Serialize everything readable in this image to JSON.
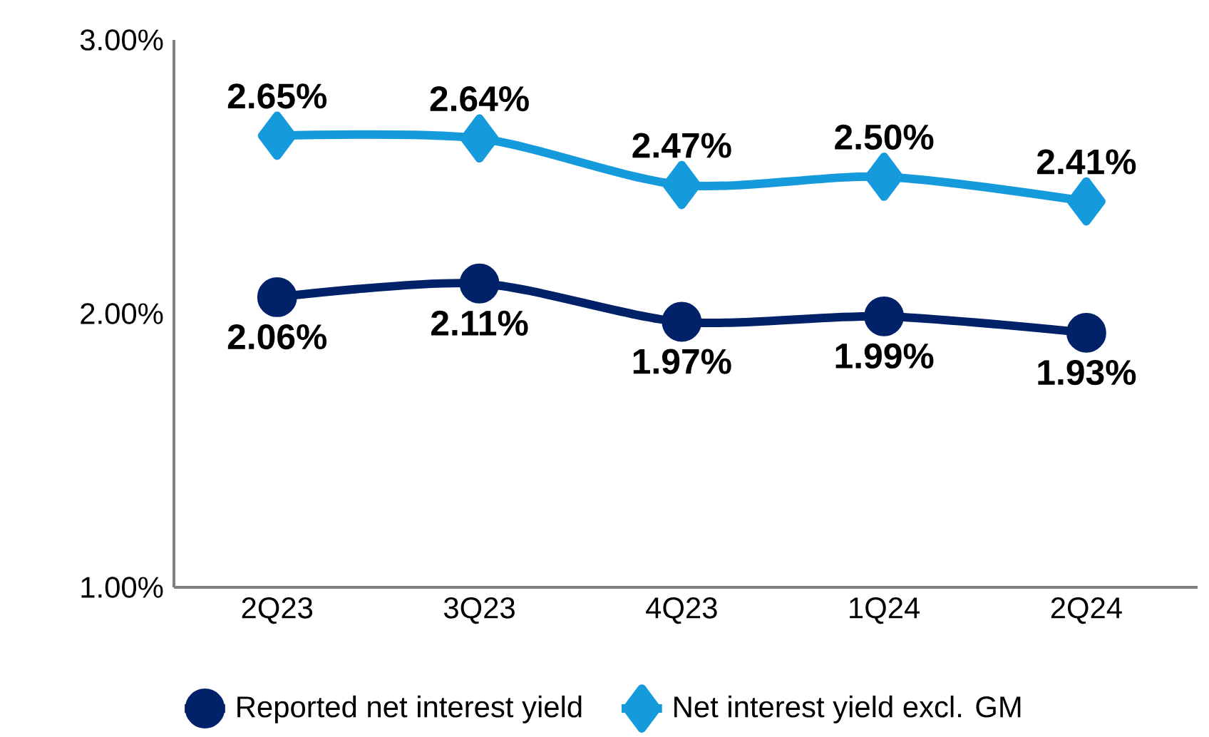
{
  "chart_data": {
    "type": "line",
    "categories": [
      "2Q23",
      "3Q23",
      "4Q23",
      "1Q24",
      "2Q24"
    ],
    "series": [
      {
        "name": "Reported net interest yield",
        "color": "#012169",
        "marker": "circle",
        "values": [
          2.06,
          2.11,
          1.97,
          1.99,
          1.93
        ],
        "value_labels": [
          "2.06%",
          "2.11%",
          "1.97%",
          "1.99%",
          "1.93%"
        ]
      },
      {
        "name": "Net interest yield excl. GM",
        "color": "#159bdc",
        "marker": "diamond",
        "values": [
          2.65,
          2.64,
          2.47,
          2.5,
          2.41
        ],
        "value_labels": [
          "2.65%",
          "2.64%",
          "2.47%",
          "2.50%",
          "2.41%"
        ]
      }
    ],
    "ylim": [
      1,
      3
    ],
    "yticks": [
      {
        "value": 1,
        "label": "1.00%"
      },
      {
        "value": 2,
        "label": "2.00%"
      },
      {
        "value": 3,
        "label": "3.00%"
      }
    ],
    "grid": false,
    "legend": "bottom"
  }
}
